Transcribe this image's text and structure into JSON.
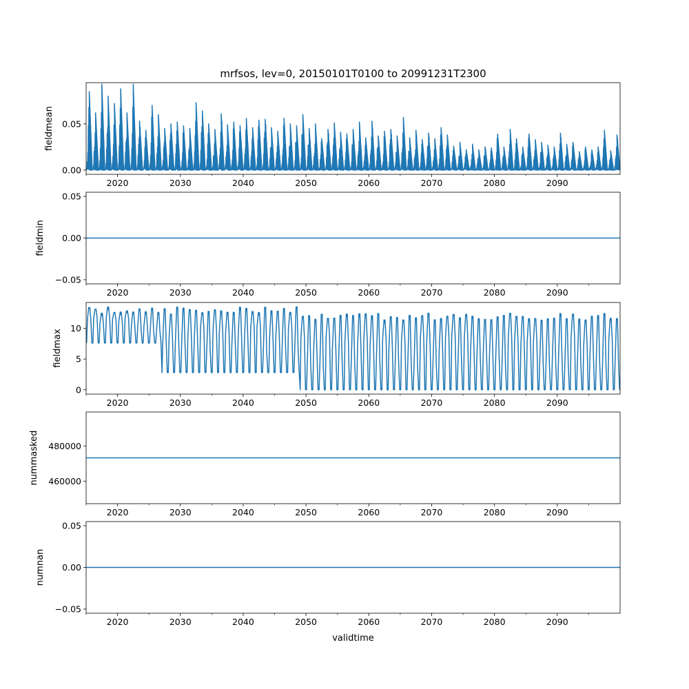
{
  "title": "mrfsos, lev=0, 20150101T0100 to 20991231T2300",
  "xlabel": "validtime",
  "line_color": "#1f77b4",
  "chart_data": [
    {
      "type": "line",
      "ylabel": "fieldmean",
      "xlim": [
        2015.0,
        2100.0
      ],
      "ylim": [
        -0.0046,
        0.0946
      ],
      "xticks": [
        "2020",
        "2030",
        "2040",
        "2050",
        "2060",
        "2070",
        "2080",
        "2090"
      ],
      "yticks": [
        {
          "v": 0.0,
          "label": "0.00"
        },
        {
          "v": 0.05,
          "label": "0.05"
        }
      ],
      "pattern": "seasonal_spikes",
      "peaks": [
        {
          "x": 2015.5,
          "y": 0.085
        },
        {
          "x": 2016.5,
          "y": 0.062
        },
        {
          "x": 2017.5,
          "y": 0.093
        },
        {
          "x": 2018.5,
          "y": 0.08
        },
        {
          "x": 2019.5,
          "y": 0.072
        },
        {
          "x": 2020.5,
          "y": 0.088
        },
        {
          "x": 2021.5,
          "y": 0.062
        },
        {
          "x": 2022.5,
          "y": 0.093
        },
        {
          "x": 2023.5,
          "y": 0.053
        },
        {
          "x": 2024.5,
          "y": 0.043
        },
        {
          "x": 2025.5,
          "y": 0.07
        },
        {
          "x": 2026.5,
          "y": 0.06
        },
        {
          "x": 2027.5,
          "y": 0.045
        },
        {
          "x": 2028.5,
          "y": 0.05
        },
        {
          "x": 2029.5,
          "y": 0.052
        },
        {
          "x": 2030.5,
          "y": 0.048
        },
        {
          "x": 2031.5,
          "y": 0.045
        },
        {
          "x": 2032.5,
          "y": 0.073
        },
        {
          "x": 2033.5,
          "y": 0.064
        },
        {
          "x": 2034.5,
          "y": 0.05
        },
        {
          "x": 2035.5,
          "y": 0.044
        },
        {
          "x": 2036.5,
          "y": 0.061
        },
        {
          "x": 2037.5,
          "y": 0.049
        },
        {
          "x": 2038.5,
          "y": 0.052
        },
        {
          "x": 2039.5,
          "y": 0.048
        },
        {
          "x": 2040.5,
          "y": 0.056
        },
        {
          "x": 2041.5,
          "y": 0.046
        },
        {
          "x": 2042.5,
          "y": 0.054
        },
        {
          "x": 2043.5,
          "y": 0.055
        },
        {
          "x": 2044.5,
          "y": 0.046
        },
        {
          "x": 2045.5,
          "y": 0.042
        },
        {
          "x": 2046.5,
          "y": 0.056
        },
        {
          "x": 2047.5,
          "y": 0.05
        },
        {
          "x": 2048.5,
          "y": 0.048
        },
        {
          "x": 2049.5,
          "y": 0.06
        },
        {
          "x": 2050.5,
          "y": 0.045
        },
        {
          "x": 2051.5,
          "y": 0.05
        },
        {
          "x": 2052.5,
          "y": 0.034
        },
        {
          "x": 2053.5,
          "y": 0.044
        },
        {
          "x": 2054.5,
          "y": 0.051
        },
        {
          "x": 2055.5,
          "y": 0.041
        },
        {
          "x": 2056.5,
          "y": 0.039
        },
        {
          "x": 2057.5,
          "y": 0.044
        },
        {
          "x": 2058.5,
          "y": 0.052
        },
        {
          "x": 2059.5,
          "y": 0.035
        },
        {
          "x": 2060.5,
          "y": 0.053
        },
        {
          "x": 2061.5,
          "y": 0.037
        },
        {
          "x": 2062.5,
          "y": 0.042
        },
        {
          "x": 2063.5,
          "y": 0.044
        },
        {
          "x": 2064.5,
          "y": 0.037
        },
        {
          "x": 2065.5,
          "y": 0.057
        },
        {
          "x": 2066.5,
          "y": 0.035
        },
        {
          "x": 2067.5,
          "y": 0.043
        },
        {
          "x": 2068.5,
          "y": 0.033
        },
        {
          "x": 2069.5,
          "y": 0.04
        },
        {
          "x": 2070.5,
          "y": 0.034
        },
        {
          "x": 2071.5,
          "y": 0.046
        },
        {
          "x": 2072.5,
          "y": 0.038
        },
        {
          "x": 2073.5,
          "y": 0.026
        },
        {
          "x": 2074.5,
          "y": 0.03
        },
        {
          "x": 2075.5,
          "y": 0.022
        },
        {
          "x": 2076.5,
          "y": 0.028
        },
        {
          "x": 2077.5,
          "y": 0.022
        },
        {
          "x": 2078.5,
          "y": 0.025
        },
        {
          "x": 2079.5,
          "y": 0.024
        },
        {
          "x": 2080.5,
          "y": 0.039
        },
        {
          "x": 2081.5,
          "y": 0.025
        },
        {
          "x": 2082.5,
          "y": 0.044
        },
        {
          "x": 2083.5,
          "y": 0.034
        },
        {
          "x": 2084.5,
          "y": 0.025
        },
        {
          "x": 2085.5,
          "y": 0.039
        },
        {
          "x": 2086.5,
          "y": 0.033
        },
        {
          "x": 2087.5,
          "y": 0.03
        },
        {
          "x": 2088.5,
          "y": 0.027
        },
        {
          "x": 2089.5,
          "y": 0.025
        },
        {
          "x": 2090.5,
          "y": 0.04
        },
        {
          "x": 2091.5,
          "y": 0.028
        },
        {
          "x": 2092.5,
          "y": 0.03
        },
        {
          "x": 2093.5,
          "y": 0.02
        },
        {
          "x": 2094.5,
          "y": 0.025
        },
        {
          "x": 2095.5,
          "y": 0.022
        },
        {
          "x": 2096.5,
          "y": 0.025
        },
        {
          "x": 2097.5,
          "y": 0.043
        },
        {
          "x": 2098.5,
          "y": 0.021
        },
        {
          "x": 2099.5,
          "y": 0.038
        }
      ]
    },
    {
      "type": "line",
      "ylabel": "fieldmin",
      "xlim": [
        2015.0,
        2100.0
      ],
      "ylim": [
        -0.055,
        0.055
      ],
      "xticks": [
        "2020",
        "2030",
        "2040",
        "2050",
        "2060",
        "2070",
        "2080",
        "2090"
      ],
      "yticks": [
        {
          "v": -0.05,
          "label": "−0.05"
        },
        {
          "v": 0.0,
          "label": "0.00"
        },
        {
          "v": 0.05,
          "label": "0.05"
        }
      ],
      "pattern": "constant",
      "value": 0.0
    },
    {
      "type": "line",
      "ylabel": "fieldmax",
      "xlim": [
        2015.0,
        2100.0
      ],
      "ylim": [
        -0.7,
        14.2
      ],
      "xticks": [
        "2020",
        "2030",
        "2040",
        "2050",
        "2060",
        "2070",
        "2080",
        "2090"
      ],
      "yticks": [
        {
          "v": 0,
          "label": "0"
        },
        {
          "v": 5,
          "label": "5"
        },
        {
          "v": 10,
          "label": "10"
        }
      ],
      "pattern": "seasonal_band",
      "segments": [
        {
          "x_start": 2015.0,
          "x_end": 2027.0,
          "low": 7.6,
          "high": 13.5
        },
        {
          "x_start": 2027.0,
          "x_end": 2049.0,
          "low": 2.8,
          "high": 13.5
        },
        {
          "x_start": 2049.0,
          "x_end": 2100.0,
          "low": 0.0,
          "high": 12.5
        }
      ]
    },
    {
      "type": "line",
      "ylabel": "nummasked",
      "xlim": [
        2015.0,
        2100.0
      ],
      "ylim": [
        447200,
        499300
      ],
      "xticks": [
        "2020",
        "2030",
        "2040",
        "2050",
        "2060",
        "2070",
        "2080",
        "2090"
      ],
      "yticks": [
        {
          "v": 460000,
          "label": "460000"
        },
        {
          "v": 480000,
          "label": "480000"
        }
      ],
      "pattern": "constant",
      "value": 473250
    },
    {
      "type": "line",
      "ylabel": "numnan",
      "xlim": [
        2015.0,
        2100.0
      ],
      "ylim": [
        -0.055,
        0.055
      ],
      "xticks": [
        "2020",
        "2030",
        "2040",
        "2050",
        "2060",
        "2070",
        "2080",
        "2090"
      ],
      "yticks": [
        {
          "v": -0.05,
          "label": "−0.05"
        },
        {
          "v": 0.0,
          "label": "0.00"
        },
        {
          "v": 0.05,
          "label": "0.05"
        }
      ],
      "pattern": "constant",
      "value": 0.0
    }
  ]
}
